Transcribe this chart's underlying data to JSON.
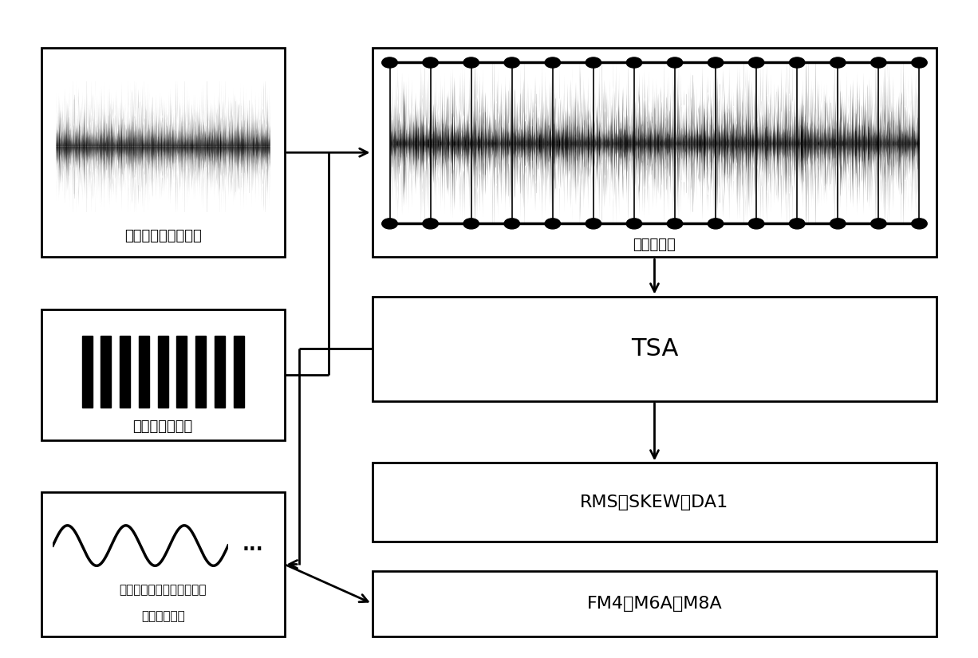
{
  "bg_color": "#ffffff",
  "lw": 2.0,
  "boxes": {
    "vibration": [
      0.04,
      0.61,
      0.25,
      0.32
    ],
    "speed": [
      0.04,
      0.33,
      0.25,
      0.2
    ],
    "segment": [
      0.38,
      0.61,
      0.58,
      0.32
    ],
    "tsa": [
      0.38,
      0.39,
      0.58,
      0.16
    ],
    "rms": [
      0.38,
      0.175,
      0.58,
      0.12
    ],
    "fm4": [
      0.38,
      0.03,
      0.58,
      0.1
    ],
    "filtered": [
      0.04,
      0.03,
      0.25,
      0.22
    ]
  },
  "labels": {
    "vibration": "原始采集的振动信号",
    "speed": "对应的转速信号",
    "segment": "划分数据块",
    "tsa": "TSA",
    "rms": "RMS、SKEW、DA1",
    "fm4": "FM4、M6A、M8A",
    "filtered_line1": "滤掉噜合频率及其谐波分量",
    "filtered_line2": "的一阶边频带"
  },
  "n_segs": 13,
  "n_bars": 9
}
